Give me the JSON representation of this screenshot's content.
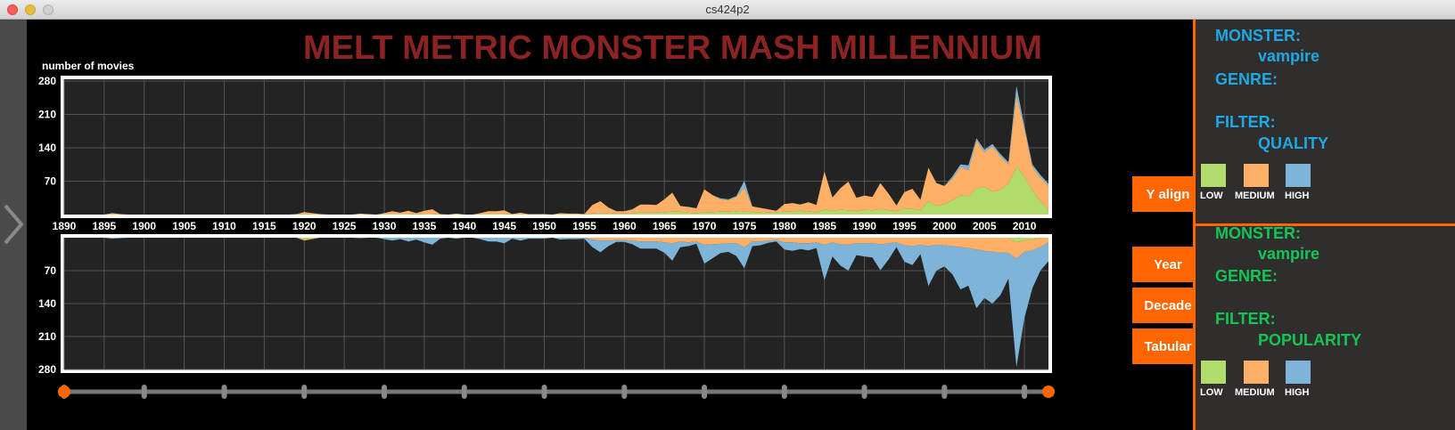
{
  "window": {
    "title": "cs424p2"
  },
  "app": {
    "title": "MELT METRIC MONSTER MASH MILLENNIUM",
    "y_axis_label": "number of movies"
  },
  "colors": {
    "low": "#b1db6b",
    "medium": "#ffb066",
    "high": "#7db4d8",
    "accent": "#ff6600",
    "title": "#8b2323",
    "panel_top_text": "#1ea8e6",
    "panel_bottom_text": "#12c556"
  },
  "chart": {
    "year_ticks": [
      1890,
      1895,
      1900,
      1905,
      1910,
      1915,
      1920,
      1925,
      1930,
      1935,
      1940,
      1945,
      1950,
      1955,
      1960,
      1965,
      1970,
      1975,
      1980,
      1985,
      1990,
      1995,
      2000,
      2005,
      2010
    ],
    "x_range": [
      1890,
      2013
    ],
    "top_y_ticks": [
      280,
      210,
      140,
      70
    ],
    "bottom_y_ticks": [
      70,
      140,
      210,
      280
    ],
    "y_range": [
      0,
      280
    ],
    "top_chart": {
      "filter": "QUALITY"
    },
    "bottom_chart": {
      "filter": "POPULARITY"
    },
    "slider": {
      "range": [
        1890,
        2013
      ],
      "tick_years": [
        1890,
        1900,
        1910,
        1920,
        1930,
        1940,
        1950,
        1960,
        1970,
        1980,
        1990,
        2000,
        2010
      ]
    }
  },
  "buttons": {
    "y_align": "Y align",
    "year": "Year",
    "decade": "Decade",
    "tabular": "Tabular"
  },
  "panel_top": {
    "monster_label": "MONSTER:",
    "monster_value": "vampire",
    "genre_label": "GENRE:",
    "genre_value": "",
    "filter_label": "FILTER:",
    "filter_value": "QUALITY",
    "legend": [
      "LOW",
      "MEDIUM",
      "HIGH"
    ]
  },
  "panel_bottom": {
    "monster_label": "MONSTER:",
    "monster_value": "vampire",
    "genre_label": "GENRE:",
    "genre_value": "",
    "filter_label": "FILTER:",
    "filter_value": "POPULARITY",
    "legend": [
      "LOW",
      "MEDIUM",
      "HIGH"
    ]
  },
  "chart_data": {
    "type": "area",
    "x": [
      1890,
      1891,
      1892,
      1893,
      1894,
      1895,
      1896,
      1897,
      1898,
      1899,
      1900,
      1901,
      1902,
      1903,
      1904,
      1905,
      1906,
      1907,
      1908,
      1909,
      1910,
      1911,
      1912,
      1913,
      1914,
      1915,
      1916,
      1917,
      1918,
      1919,
      1920,
      1921,
      1922,
      1923,
      1924,
      1925,
      1926,
      1927,
      1928,
      1929,
      1930,
      1931,
      1932,
      1933,
      1934,
      1935,
      1936,
      1937,
      1938,
      1939,
      1940,
      1941,
      1942,
      1943,
      1944,
      1945,
      1946,
      1947,
      1948,
      1949,
      1950,
      1951,
      1952,
      1953,
      1954,
      1955,
      1956,
      1957,
      1958,
      1959,
      1960,
      1961,
      1962,
      1963,
      1964,
      1965,
      1966,
      1967,
      1968,
      1969,
      1970,
      1971,
      1972,
      1973,
      1974,
      1975,
      1976,
      1977,
      1978,
      1979,
      1980,
      1981,
      1982,
      1983,
      1984,
      1985,
      1986,
      1987,
      1988,
      1989,
      1990,
      1991,
      1992,
      1993,
      1994,
      1995,
      1996,
      1997,
      1998,
      1999,
      2000,
      2001,
      2002,
      2003,
      2004,
      2005,
      2006,
      2007,
      2008,
      2009,
      2010,
      2011,
      2012,
      2013
    ],
    "xlabel": "",
    "ylabel": "number of movies",
    "ylim": [
      0,
      280
    ],
    "charts": [
      {
        "filter": "QUALITY",
        "series": [
          {
            "name": "LOW",
            "values": [
              0,
              0,
              0,
              0,
              0,
              0,
              0,
              0,
              0,
              0,
              0,
              0,
              0,
              0,
              0,
              0,
              0,
              0,
              0,
              0,
              0,
              0,
              0,
              0,
              0,
              0,
              0,
              0,
              0,
              0,
              1,
              0,
              0,
              0,
              0,
              0,
              0,
              0,
              0,
              0,
              1,
              1,
              1,
              1,
              0,
              1,
              1,
              0,
              0,
              0,
              0,
              0,
              1,
              1,
              1,
              1,
              0,
              0,
              0,
              0,
              0,
              0,
              0,
              0,
              0,
              0,
              2,
              3,
              3,
              2,
              2,
              3,
              4,
              4,
              4,
              5,
              6,
              6,
              4,
              3,
              5,
              5,
              6,
              6,
              7,
              6,
              5,
              5,
              4,
              5,
              6,
              6,
              8,
              6,
              5,
              10,
              8,
              10,
              9,
              7,
              10,
              9,
              11,
              9,
              7,
              12,
              12,
              9,
              28,
              18,
              22,
              30,
              40,
              38,
              55,
              58,
              48,
              52,
              65,
              100,
              80,
              50,
              28,
              10
            ]
          },
          {
            "name": "MEDIUM",
            "values": [
              0,
              0,
              0,
              0,
              0,
              0,
              3,
              1,
              0,
              0,
              0,
              0,
              0,
              0,
              0,
              0,
              0,
              0,
              0,
              0,
              0,
              0,
              0,
              0,
              0,
              0,
              0,
              0,
              0,
              1,
              4,
              3,
              1,
              0,
              0,
              0,
              0,
              2,
              1,
              0,
              2,
              6,
              3,
              7,
              3,
              7,
              10,
              1,
              0,
              2,
              0,
              0,
              2,
              6,
              6,
              8,
              1,
              4,
              1,
              1,
              1,
              0,
              3,
              2,
              2,
              1,
              18,
              25,
              12,
              5,
              5,
              8,
              17,
              17,
              16,
              27,
              40,
              12,
              12,
              10,
              48,
              36,
              26,
              24,
              30,
              50,
              12,
              9,
              7,
              3,
              16,
              18,
              13,
              20,
              15,
              80,
              28,
              45,
              60,
              28,
              30,
              28,
              55,
              35,
              12,
              35,
              42,
              22,
              70,
              48,
              38,
              45,
              60,
              55,
              100,
              73,
              95,
              70,
              40,
              150,
              100,
              50,
              50,
              50
            ]
          },
          {
            "name": "HIGH",
            "values": [
              0,
              0,
              0,
              0,
              0,
              0,
              0,
              0,
              0,
              0,
              0,
              0,
              0,
              0,
              0,
              0,
              0,
              0,
              0,
              0,
              0,
              0,
              0,
              0,
              0,
              0,
              0,
              0,
              0,
              0,
              0,
              0,
              0,
              0,
              0,
              0,
              0,
              0,
              0,
              0,
              0,
              0,
              0,
              0,
              0,
              0,
              0,
              0,
              0,
              0,
              0,
              0,
              0,
              0,
              0,
              0,
              0,
              0,
              0,
              0,
              0,
              0,
              0,
              0,
              0,
              0,
              0,
              0,
              0,
              0,
              0,
              0,
              0,
              0,
              0,
              0,
              0,
              0,
              0,
              0,
              0,
              0,
              2,
              2,
              2,
              15,
              0,
              0,
              0,
              0,
              0,
              0,
              0,
              0,
              0,
              0,
              0,
              0,
              0,
              0,
              0,
              0,
              0,
              0,
              0,
              0,
              0,
              0,
              0,
              0,
              0,
              5,
              5,
              10,
              5,
              5,
              5,
              5,
              5,
              20,
              5,
              5,
              5,
              5
            ]
          }
        ]
      },
      {
        "filter": "POPULARITY",
        "series": [
          {
            "name": "LOW",
            "values": [
              0,
              0,
              0,
              0,
              0,
              0,
              0,
              0,
              0,
              0,
              0,
              0,
              0,
              0,
              0,
              0,
              0,
              0,
              0,
              0,
              0,
              0,
              0,
              0,
              0,
              0,
              0,
              0,
              0,
              0,
              4,
              2,
              0,
              0,
              0,
              0,
              0,
              0,
              0,
              0,
              0,
              0,
              0,
              0,
              0,
              0,
              0,
              0,
              0,
              0,
              0,
              0,
              0,
              0,
              0,
              0,
              0,
              0,
              0,
              0,
              0,
              0,
              0,
              0,
              0,
              0,
              0,
              0,
              0,
              0,
              0,
              0,
              0,
              0,
              0,
              0,
              0,
              0,
              0,
              0,
              0,
              0,
              0,
              0,
              0,
              0,
              0,
              0,
              0,
              0,
              0,
              0,
              0,
              0,
              0,
              0,
              0,
              0,
              0,
              0,
              0,
              0,
              0,
              0,
              0,
              0,
              0,
              0,
              0,
              0,
              0,
              0,
              0,
              0,
              0,
              0,
              0,
              0,
              0,
              10,
              5,
              5,
              0,
              0
            ]
          },
          {
            "name": "MEDIUM",
            "values": [
              0,
              0,
              0,
              0,
              0,
              0,
              0,
              0,
              0,
              0,
              0,
              0,
              0,
              0,
              0,
              0,
              0,
              0,
              0,
              0,
              0,
              0,
              0,
              0,
              0,
              0,
              0,
              0,
              0,
              0,
              2,
              1,
              0,
              0,
              0,
              0,
              0,
              0,
              0,
              0,
              0,
              0,
              0,
              0,
              0,
              0,
              0,
              0,
              0,
              0,
              0,
              0,
              0,
              0,
              0,
              0,
              0,
              0,
              0,
              0,
              0,
              0,
              0,
              0,
              0,
              0,
              4,
              6,
              6,
              5,
              5,
              6,
              8,
              8,
              8,
              10,
              12,
              8,
              10,
              8,
              15,
              14,
              13,
              12,
              12,
              20,
              8,
              8,
              6,
              5,
              10,
              10,
              12,
              12,
              10,
              15,
              10,
              14,
              15,
              12,
              12,
              12,
              14,
              12,
              10,
              16,
              18,
              15,
              18,
              15,
              16,
              18,
              20,
              22,
              25,
              28,
              30,
              32,
              32,
              35,
              25,
              22,
              20,
              10
            ]
          },
          {
            "name": "HIGH",
            "values": [
              0,
              0,
              0,
              0,
              0,
              0,
              2,
              1,
              0,
              0,
              0,
              0,
              0,
              0,
              0,
              0,
              0,
              0,
              0,
              0,
              0,
              0,
              0,
              0,
              0,
              0,
              0,
              0,
              0,
              0,
              0,
              0,
              0,
              0,
              0,
              0,
              0,
              1,
              0,
              0,
              3,
              6,
              3,
              8,
              4,
              10,
              15,
              2,
              0,
              2,
              0,
              0,
              3,
              8,
              8,
              12,
              2,
              6,
              2,
              2,
              2,
              0,
              4,
              3,
              3,
              2,
              16,
              25,
              12,
              4,
              4,
              8,
              15,
              15,
              15,
              22,
              37,
              12,
              8,
              5,
              40,
              30,
              20,
              18,
              27,
              45,
              10,
              8,
              5,
              3,
              15,
              18,
              12,
              15,
              12,
              75,
              30,
              45,
              55,
              25,
              28,
              30,
              55,
              35,
              10,
              35,
              40,
              20,
              85,
              55,
              45,
              60,
              90,
              80,
              125,
              100,
              110,
              90,
              55,
              230,
              140,
              80,
              50,
              40
            ]
          }
        ]
      }
    ]
  }
}
